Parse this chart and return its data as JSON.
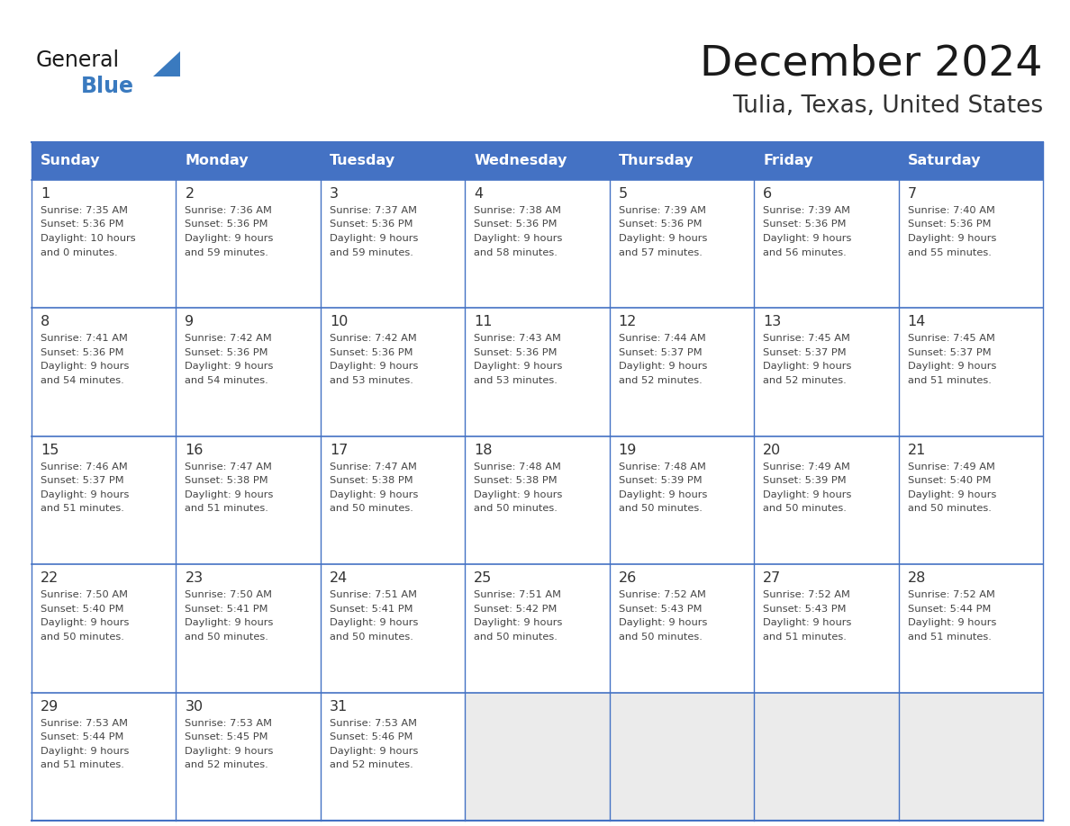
{
  "title": "December 2024",
  "subtitle": "Tulia, Texas, United States",
  "header_bg": "#4472C4",
  "header_text_color": "#FFFFFF",
  "border_color": "#4472C4",
  "cell_line_color": "#4472C4",
  "day_headers": [
    "Sunday",
    "Monday",
    "Tuesday",
    "Wednesday",
    "Thursday",
    "Friday",
    "Saturday"
  ],
  "title_color": "#1a1a1a",
  "subtitle_color": "#333333",
  "day_num_color": "#333333",
  "cell_text_color": "#444444",
  "logo_general_color": "#1a1a1a",
  "logo_blue_color": "#3a7abf",
  "last_row_bg": "#f0f0f0",
  "weeks": [
    [
      {
        "day": 1,
        "sunrise": "7:35 AM",
        "sunset": "5:36 PM",
        "dl1": "Daylight: 10 hours",
        "dl2": "and 0 minutes."
      },
      {
        "day": 2,
        "sunrise": "7:36 AM",
        "sunset": "5:36 PM",
        "dl1": "Daylight: 9 hours",
        "dl2": "and 59 minutes."
      },
      {
        "day": 3,
        "sunrise": "7:37 AM",
        "sunset": "5:36 PM",
        "dl1": "Daylight: 9 hours",
        "dl2": "and 59 minutes."
      },
      {
        "day": 4,
        "sunrise": "7:38 AM",
        "sunset": "5:36 PM",
        "dl1": "Daylight: 9 hours",
        "dl2": "and 58 minutes."
      },
      {
        "day": 5,
        "sunrise": "7:39 AM",
        "sunset": "5:36 PM",
        "dl1": "Daylight: 9 hours",
        "dl2": "and 57 minutes."
      },
      {
        "day": 6,
        "sunrise": "7:39 AM",
        "sunset": "5:36 PM",
        "dl1": "Daylight: 9 hours",
        "dl2": "and 56 minutes."
      },
      {
        "day": 7,
        "sunrise": "7:40 AM",
        "sunset": "5:36 PM",
        "dl1": "Daylight: 9 hours",
        "dl2": "and 55 minutes."
      }
    ],
    [
      {
        "day": 8,
        "sunrise": "7:41 AM",
        "sunset": "5:36 PM",
        "dl1": "Daylight: 9 hours",
        "dl2": "and 54 minutes."
      },
      {
        "day": 9,
        "sunrise": "7:42 AM",
        "sunset": "5:36 PM",
        "dl1": "Daylight: 9 hours",
        "dl2": "and 54 minutes."
      },
      {
        "day": 10,
        "sunrise": "7:42 AM",
        "sunset": "5:36 PM",
        "dl1": "Daylight: 9 hours",
        "dl2": "and 53 minutes."
      },
      {
        "day": 11,
        "sunrise": "7:43 AM",
        "sunset": "5:36 PM",
        "dl1": "Daylight: 9 hours",
        "dl2": "and 53 minutes."
      },
      {
        "day": 12,
        "sunrise": "7:44 AM",
        "sunset": "5:37 PM",
        "dl1": "Daylight: 9 hours",
        "dl2": "and 52 minutes."
      },
      {
        "day": 13,
        "sunrise": "7:45 AM",
        "sunset": "5:37 PM",
        "dl1": "Daylight: 9 hours",
        "dl2": "and 52 minutes."
      },
      {
        "day": 14,
        "sunrise": "7:45 AM",
        "sunset": "5:37 PM",
        "dl1": "Daylight: 9 hours",
        "dl2": "and 51 minutes."
      }
    ],
    [
      {
        "day": 15,
        "sunrise": "7:46 AM",
        "sunset": "5:37 PM",
        "dl1": "Daylight: 9 hours",
        "dl2": "and 51 minutes."
      },
      {
        "day": 16,
        "sunrise": "7:47 AM",
        "sunset": "5:38 PM",
        "dl1": "Daylight: 9 hours",
        "dl2": "and 51 minutes."
      },
      {
        "day": 17,
        "sunrise": "7:47 AM",
        "sunset": "5:38 PM",
        "dl1": "Daylight: 9 hours",
        "dl2": "and 50 minutes."
      },
      {
        "day": 18,
        "sunrise": "7:48 AM",
        "sunset": "5:38 PM",
        "dl1": "Daylight: 9 hours",
        "dl2": "and 50 minutes."
      },
      {
        "day": 19,
        "sunrise": "7:48 AM",
        "sunset": "5:39 PM",
        "dl1": "Daylight: 9 hours",
        "dl2": "and 50 minutes."
      },
      {
        "day": 20,
        "sunrise": "7:49 AM",
        "sunset": "5:39 PM",
        "dl1": "Daylight: 9 hours",
        "dl2": "and 50 minutes."
      },
      {
        "day": 21,
        "sunrise": "7:49 AM",
        "sunset": "5:40 PM",
        "dl1": "Daylight: 9 hours",
        "dl2": "and 50 minutes."
      }
    ],
    [
      {
        "day": 22,
        "sunrise": "7:50 AM",
        "sunset": "5:40 PM",
        "dl1": "Daylight: 9 hours",
        "dl2": "and 50 minutes."
      },
      {
        "day": 23,
        "sunrise": "7:50 AM",
        "sunset": "5:41 PM",
        "dl1": "Daylight: 9 hours",
        "dl2": "and 50 minutes."
      },
      {
        "day": 24,
        "sunrise": "7:51 AM",
        "sunset": "5:41 PM",
        "dl1": "Daylight: 9 hours",
        "dl2": "and 50 minutes."
      },
      {
        "day": 25,
        "sunrise": "7:51 AM",
        "sunset": "5:42 PM",
        "dl1": "Daylight: 9 hours",
        "dl2": "and 50 minutes."
      },
      {
        "day": 26,
        "sunrise": "7:52 AM",
        "sunset": "5:43 PM",
        "dl1": "Daylight: 9 hours",
        "dl2": "and 50 minutes."
      },
      {
        "day": 27,
        "sunrise": "7:52 AM",
        "sunset": "5:43 PM",
        "dl1": "Daylight: 9 hours",
        "dl2": "and 51 minutes."
      },
      {
        "day": 28,
        "sunrise": "7:52 AM",
        "sunset": "5:44 PM",
        "dl1": "Daylight: 9 hours",
        "dl2": "and 51 minutes."
      }
    ],
    [
      {
        "day": 29,
        "sunrise": "7:53 AM",
        "sunset": "5:44 PM",
        "dl1": "Daylight: 9 hours",
        "dl2": "and 51 minutes."
      },
      {
        "day": 30,
        "sunrise": "7:53 AM",
        "sunset": "5:45 PM",
        "dl1": "Daylight: 9 hours",
        "dl2": "and 52 minutes."
      },
      {
        "day": 31,
        "sunrise": "7:53 AM",
        "sunset": "5:46 PM",
        "dl1": "Daylight: 9 hours",
        "dl2": "and 52 minutes."
      },
      null,
      null,
      null,
      null
    ]
  ]
}
